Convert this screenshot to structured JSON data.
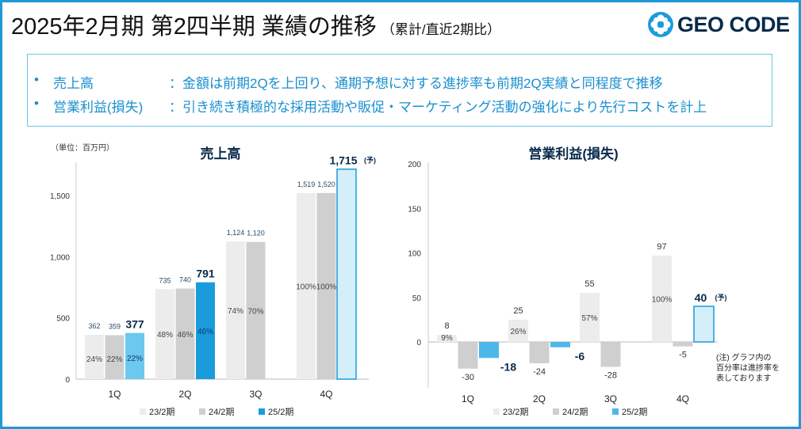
{
  "header": {
    "title": "2025年2月期 第2四半期 業績の推移",
    "subtitle": "（累計/直近2期比）",
    "logo_text": "GEO CODE"
  },
  "summary": [
    {
      "bullet": "•",
      "label": "売上高",
      "desc": "：金額は前期2Qを上回り、通期予想に対する進捗率も前期2Q実績と同程度で推移"
    },
    {
      "bullet": "•",
      "label": "営業利益(損失)",
      "desc": "：引き続き積極的な採用活動や販促・マーケティング活動の強化により先行コストを計上"
    }
  ],
  "unit_label": "（単位：百万円）",
  "note": [
    "(注) グラフ内の",
    "百分率は進捗率を",
    "表しております"
  ],
  "forecast_mark": "(予)",
  "colors": {
    "s23": "#ececec",
    "s24": "#cfcfcf",
    "s25_sales": "#6cc8ee",
    "s25_sales_2q": "#1a9cdc",
    "s25_forecast": "#d4eefa",
    "s25_forecast_border": "#1a9cdc",
    "s25_op": "#4db8e8",
    "accent": "#0a2a4a",
    "border": "#1f9ad6"
  },
  "chart_data": [
    {
      "type": "bar",
      "title": "売上高",
      "categories": [
        "1Q",
        "2Q",
        "3Q",
        "4Q"
      ],
      "ylim": [
        0,
        1750
      ],
      "yticks": [
        0,
        500,
        1000,
        1500
      ],
      "ytick_labels": [
        "0",
        "500",
        "1,000",
        "1,500"
      ],
      "series": [
        {
          "name": "23/2期",
          "values": [
            362,
            735,
            1124,
            1519
          ],
          "labels": [
            "362",
            "735",
            "1,124",
            "1,519"
          ],
          "pct": [
            "24%",
            "48%",
            "74%",
            "100%"
          ]
        },
        {
          "name": "24/2期",
          "values": [
            359,
            740,
            1120,
            1520
          ],
          "labels": [
            "359",
            "740",
            "1,120",
            "1,520"
          ],
          "pct": [
            "22%",
            "46%",
            "70%",
            "100%"
          ]
        },
        {
          "name": "25/2期",
          "values": [
            377,
            791,
            null,
            1715
          ],
          "labels": [
            "377",
            "791",
            "",
            "1,715"
          ],
          "pct": [
            "22%",
            "46%",
            "",
            ""
          ],
          "forecast_index": 3
        }
      ]
    },
    {
      "type": "bar",
      "title": "営業利益(損失)",
      "categories": [
        "1Q",
        "2Q",
        "3Q",
        "4Q"
      ],
      "ylim": [
        -40,
        200
      ],
      "yticks": [
        0,
        50,
        100,
        150,
        200
      ],
      "ytick_labels": [
        "0",
        "50",
        "100",
        "150",
        "200"
      ],
      "series": [
        {
          "name": "23/2期",
          "values": [
            8,
            25,
            55,
            97
          ],
          "labels": [
            "8",
            "25",
            "55",
            "97"
          ],
          "pct": [
            "9%",
            "26%",
            "57%",
            "100%"
          ]
        },
        {
          "name": "24/2期",
          "values": [
            -30,
            -24,
            -28,
            -5
          ],
          "labels": [
            "-30",
            "-24",
            "-28",
            "-5"
          ],
          "pct": [
            "",
            "",
            "",
            ""
          ]
        },
        {
          "name": "25/2期",
          "values": [
            -18,
            -6,
            null,
            40
          ],
          "labels": [
            "-18",
            "-6",
            "",
            "40"
          ],
          "pct": [
            "",
            "",
            "",
            ""
          ],
          "forecast_index": 3
        }
      ]
    }
  ]
}
